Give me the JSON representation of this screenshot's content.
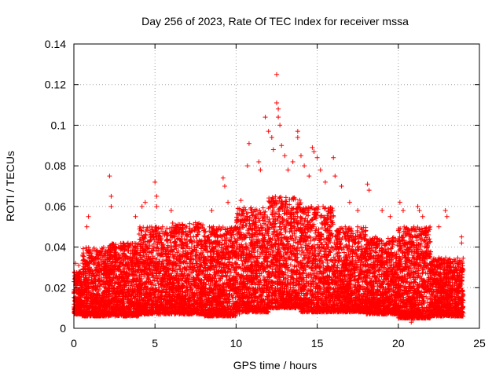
{
  "chart_data": {
    "type": "scatter",
    "title": "Day 256 of 2023, Rate Of TEC Index for receiver mssa",
    "xlabel": "GPS time / hours",
    "ylabel": "ROTI / TECUs",
    "xlim": [
      0,
      25
    ],
    "ylim": [
      0,
      0.14
    ],
    "x_ticks": [
      0,
      5,
      10,
      15,
      20,
      25
    ],
    "x_tick_labels": [
      "0",
      "5",
      "10",
      "15",
      "20",
      "25"
    ],
    "y_ticks": [
      0,
      0.02,
      0.04,
      0.06,
      0.08,
      0.1,
      0.12,
      0.14
    ],
    "y_tick_labels": [
      "0",
      "0.02",
      "0.04",
      "0.06",
      "0.08",
      "0.1",
      "0.12",
      "0.14"
    ],
    "grid": true,
    "marker": "+",
    "color": "#ff0000",
    "series": [
      {
        "name": "ROTI",
        "points": [
          [
            0.1,
            0.032
          ],
          [
            0.3,
            0.031
          ],
          [
            0.8,
            0.05
          ],
          [
            0.9,
            0.055
          ],
          [
            2.2,
            0.075
          ],
          [
            2.3,
            0.065
          ],
          [
            2.3,
            0.06
          ],
          [
            3.8,
            0.055
          ],
          [
            4.2,
            0.06
          ],
          [
            4.4,
            0.062
          ],
          [
            5.0,
            0.072
          ],
          [
            5.1,
            0.065
          ],
          [
            5.1,
            0.06
          ],
          [
            6.0,
            0.058
          ],
          [
            7.5,
            0.052
          ],
          [
            8.5,
            0.058
          ],
          [
            9.2,
            0.074
          ],
          [
            9.3,
            0.07
          ],
          [
            9.5,
            0.062
          ],
          [
            10.3,
            0.063
          ],
          [
            10.7,
            0.08
          ],
          [
            10.8,
            0.091
          ],
          [
            11.4,
            0.082
          ],
          [
            11.5,
            0.078
          ],
          [
            11.8,
            0.104
          ],
          [
            12.0,
            0.097
          ],
          [
            12.2,
            0.094
          ],
          [
            12.3,
            0.088
          ],
          [
            12.5,
            0.125
          ],
          [
            12.5,
            0.111
          ],
          [
            12.6,
            0.108
          ],
          [
            12.6,
            0.104
          ],
          [
            12.7,
            0.1
          ],
          [
            12.8,
            0.09
          ],
          [
            13.0,
            0.085
          ],
          [
            13.2,
            0.078
          ],
          [
            13.5,
            0.082
          ],
          [
            13.8,
            0.097
          ],
          [
            13.8,
            0.094
          ],
          [
            14.0,
            0.085
          ],
          [
            14.2,
            0.08
          ],
          [
            14.5,
            0.075
          ],
          [
            14.7,
            0.089
          ],
          [
            14.8,
            0.087
          ],
          [
            15.0,
            0.084
          ],
          [
            15.2,
            0.078
          ],
          [
            15.5,
            0.072
          ],
          [
            16.0,
            0.084
          ],
          [
            16.1,
            0.075
          ],
          [
            16.5,
            0.07
          ],
          [
            17.0,
            0.062
          ],
          [
            17.5,
            0.058
          ],
          [
            18.1,
            0.071
          ],
          [
            18.2,
            0.068
          ],
          [
            19.0,
            0.058
          ],
          [
            19.5,
            0.055
          ],
          [
            20.1,
            0.062
          ],
          [
            20.3,
            0.058
          ],
          [
            21.2,
            0.06
          ],
          [
            21.3,
            0.058
          ],
          [
            21.5,
            0.055
          ],
          [
            22.5,
            0.05
          ],
          [
            22.9,
            0.058
          ],
          [
            23.0,
            0.055
          ],
          [
            23.9,
            0.045
          ],
          [
            23.9,
            0.042
          ],
          [
            0.5,
            0.008
          ],
          [
            1.0,
            0.006
          ],
          [
            3.0,
            0.008
          ],
          [
            6.5,
            0.007
          ],
          [
            8.3,
            0.006
          ],
          [
            10.2,
            0.007
          ],
          [
            15.3,
            0.008
          ],
          [
            17.8,
            0.009
          ],
          [
            20.8,
            0.003
          ],
          [
            20.9,
            0.004
          ],
          [
            21.5,
            0.006
          ],
          [
            23.5,
            0.006
          ]
        ],
        "dense_band": [
          {
            "x": [
              0.0,
              0.5
            ],
            "y": [
              0.007,
              0.028
            ]
          },
          {
            "x": [
              0.5,
              2.0
            ],
            "y": [
              0.006,
              0.04
            ]
          },
          {
            "x": [
              2.0,
              4.0
            ],
            "y": [
              0.006,
              0.042
            ]
          },
          {
            "x": [
              4.0,
              6.0
            ],
            "y": [
              0.007,
              0.05
            ]
          },
          {
            "x": [
              6.0,
              8.0
            ],
            "y": [
              0.007,
              0.052
            ]
          },
          {
            "x": [
              8.0,
              10.0
            ],
            "y": [
              0.006,
              0.05
            ]
          },
          {
            "x": [
              10.0,
              12.0
            ],
            "y": [
              0.008,
              0.06
            ]
          },
          {
            "x": [
              12.0,
              14.0
            ],
            "y": [
              0.01,
              0.065
            ]
          },
          {
            "x": [
              14.0,
              16.0
            ],
            "y": [
              0.008,
              0.06
            ]
          },
          {
            "x": [
              16.0,
              18.0
            ],
            "y": [
              0.008,
              0.05
            ]
          },
          {
            "x": [
              18.0,
              20.0
            ],
            "y": [
              0.007,
              0.045
            ]
          },
          {
            "x": [
              20.0,
              22.0
            ],
            "y": [
              0.005,
              0.05
            ]
          },
          {
            "x": [
              22.0,
              24.0
            ],
            "y": [
              0.006,
              0.035
            ]
          }
        ]
      }
    ]
  }
}
